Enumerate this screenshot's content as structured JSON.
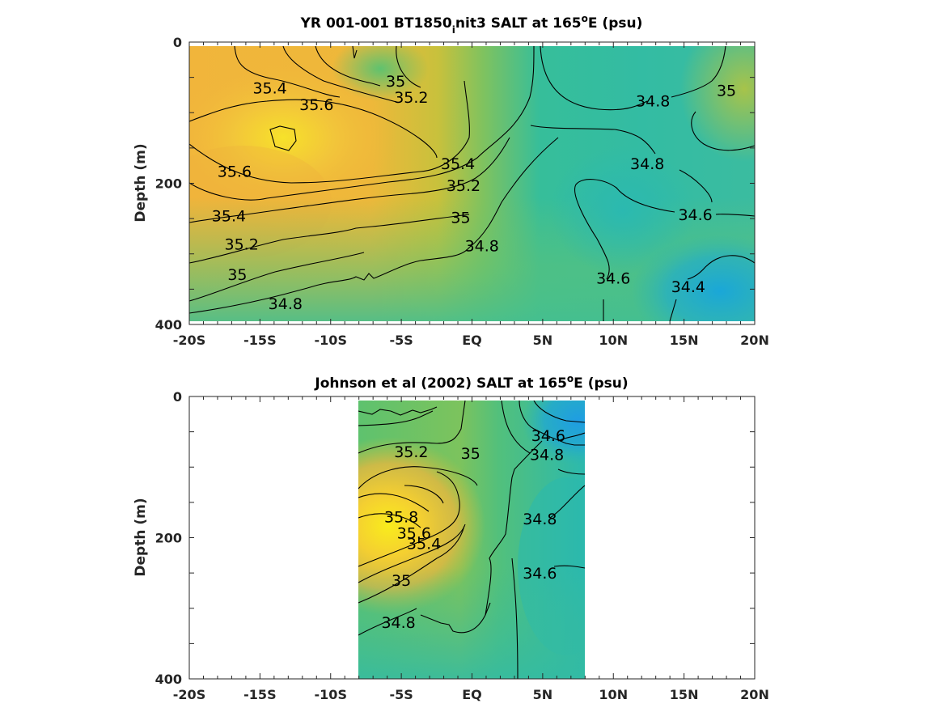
{
  "chart_data": [
    {
      "type": "heatmap",
      "title": "YR 001-001 BT1850",
      "title_subscript": "i",
      "title_rest": "nit3 SALT at 165",
      "title_superscript": "o",
      "title_end": "E (psu)",
      "ylabel": "Depth (m)",
      "x_ticklabels": [
        "-20S",
        "-15S",
        "-10S",
        "-5S",
        "EQ",
        "5N",
        "10N",
        "15N",
        "20N"
      ],
      "x_range": [
        -20,
        20
      ],
      "y_ticklabels": [
        "0",
        "200",
        "400"
      ],
      "y_range": [
        0,
        400
      ],
      "y_reversed": true,
      "colormap": "parula",
      "contour_labels": [
        {
          "text": "35.4",
          "lat": -14.3,
          "depth": 65
        },
        {
          "text": "35.6",
          "lat": -11.0,
          "depth": 88
        },
        {
          "text": "35",
          "lat": -5.4,
          "depth": 55
        },
        {
          "text": "35.2",
          "lat": -4.3,
          "depth": 78
        },
        {
          "text": "34.8",
          "lat": 12.8,
          "depth": 83
        },
        {
          "text": "35",
          "lat": 18.0,
          "depth": 68
        },
        {
          "text": "35.6",
          "lat": -16.8,
          "depth": 183
        },
        {
          "text": "35.4",
          "lat": -1.0,
          "depth": 172
        },
        {
          "text": "35.2",
          "lat": -0.6,
          "depth": 203
        },
        {
          "text": "34.8",
          "lat": 12.4,
          "depth": 172
        },
        {
          "text": "35.4",
          "lat": -17.2,
          "depth": 246
        },
        {
          "text": "35",
          "lat": -0.8,
          "depth": 248
        },
        {
          "text": "34.6",
          "lat": 15.8,
          "depth": 244
        },
        {
          "text": "35.2",
          "lat": -16.3,
          "depth": 286
        },
        {
          "text": "34.8",
          "lat": 0.7,
          "depth": 288
        },
        {
          "text": "35",
          "lat": -16.6,
          "depth": 329
        },
        {
          "text": "34.6",
          "lat": 10.0,
          "depth": 334
        },
        {
          "text": "34.4",
          "lat": 15.3,
          "depth": 346
        },
        {
          "text": "34.8",
          "lat": -13.2,
          "depth": 370
        }
      ]
    },
    {
      "type": "heatmap",
      "title": "Johnson et al (2002) SALT at 165",
      "title_superscript": "o",
      "title_end": "E (psu)",
      "ylabel": "Depth (m)",
      "x_ticklabels": [
        "-20S",
        "-15S",
        "-10S",
        "-5S",
        "EQ",
        "5N",
        "10N",
        "15N",
        "20N"
      ],
      "x_range": [
        -20,
        20
      ],
      "data_lat_range": [
        -8,
        8
      ],
      "y_ticklabels": [
        "0",
        "200",
        "400"
      ],
      "y_range": [
        0,
        400
      ],
      "y_reversed": true,
      "colormap": "parula",
      "contour_labels": [
        {
          "text": "34.6",
          "lat": 5.4,
          "depth": 55
        },
        {
          "text": "35.2",
          "lat": -4.3,
          "depth": 78
        },
        {
          "text": "35",
          "lat": -0.1,
          "depth": 80
        },
        {
          "text": "34.8",
          "lat": 5.3,
          "depth": 82
        },
        {
          "text": "35.8",
          "lat": -5.0,
          "depth": 170
        },
        {
          "text": "34.8",
          "lat": 4.8,
          "depth": 173
        },
        {
          "text": "35.6",
          "lat": -4.1,
          "depth": 193
        },
        {
          "text": "35.4",
          "lat": -3.4,
          "depth": 208
        },
        {
          "text": "34.6",
          "lat": 4.8,
          "depth": 250
        },
        {
          "text": "35",
          "lat": -5.0,
          "depth": 260
        },
        {
          "text": "34.8",
          "lat": -5.2,
          "depth": 320
        }
      ]
    }
  ]
}
